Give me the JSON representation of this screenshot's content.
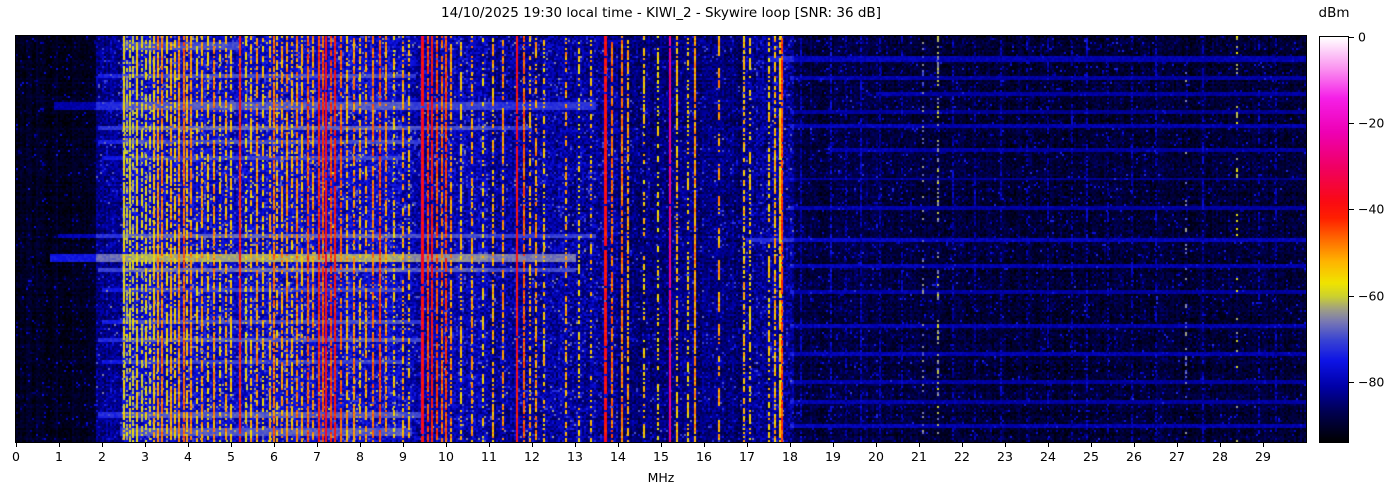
{
  "title": "14/10/2025 19:30 local time - KIWI_2 - Skywire loop [SNR: 36 dB]",
  "chart_data": {
    "type": "heatmap",
    "subtype": "radio-spectrogram-waterfall",
    "title": "14/10/2025 19:30 local time - KIWI_2 - Skywire loop [SNR: 36 dB]",
    "xlabel": "MHz",
    "x_range": [
      0,
      30
    ],
    "x_ticks": [
      0,
      1,
      2,
      3,
      4,
      5,
      6,
      7,
      8,
      9,
      10,
      11,
      12,
      13,
      14,
      15,
      16,
      17,
      18,
      19,
      20,
      21,
      22,
      23,
      24,
      25,
      26,
      27,
      28,
      29
    ],
    "y_axis": "time (vertical, unlabeled waterfall)",
    "colorbar": {
      "label": "dBm",
      "range": [
        -94,
        0
      ],
      "ticks": [
        {
          "v": 0,
          "label": "0"
        },
        {
          "v": -20,
          "label": "−20"
        },
        {
          "v": -40,
          "label": "−40"
        },
        {
          "v": -60,
          "label": "−60"
        },
        {
          "v": -80,
          "label": "−80"
        }
      ],
      "stops": [
        [
          -94,
          "#000000"
        ],
        [
          -87,
          "#000050"
        ],
        [
          -81,
          "#0000a8"
        ],
        [
          -75,
          "#0e14e6"
        ],
        [
          -70,
          "#3c46d2"
        ],
        [
          -66,
          "#7878b4"
        ],
        [
          -63,
          "#a0a082"
        ],
        [
          -60,
          "#cdd22d"
        ],
        [
          -57,
          "#f0e400"
        ],
        [
          -52,
          "#ffb400"
        ],
        [
          -47,
          "#ff6c00"
        ],
        [
          -42,
          "#ff2000"
        ],
        [
          -38,
          "#fa0a14"
        ],
        [
          -30,
          "#f00064"
        ],
        [
          -22,
          "#ee00b4"
        ],
        [
          -14,
          "#f520e8"
        ],
        [
          -7,
          "#fa96f0"
        ],
        [
          0,
          "#ffffff"
        ]
      ]
    },
    "noise_region_format": [
      "from_mhz",
      "to_mhz",
      "floor_dbm",
      "variance_db",
      "speckle_prob"
    ],
    "noise_regions": [
      [
        0.0,
        1.85,
        -91,
        2,
        0.05
      ],
      [
        1.85,
        2.45,
        -83,
        4,
        0.1
      ],
      [
        2.45,
        9.0,
        -78.5,
        5,
        0.13
      ],
      [
        9.0,
        11.0,
        -80.5,
        5,
        0.11
      ],
      [
        11.0,
        14.0,
        -82,
        5,
        0.1
      ],
      [
        14.0,
        16.9,
        -84.5,
        4,
        0.08
      ],
      [
        16.9,
        18.1,
        -82.5,
        5,
        0.1
      ],
      [
        18.1,
        21.0,
        -88.5,
        3,
        0.07
      ],
      [
        21.0,
        30.0,
        -89.5,
        3,
        0.06
      ]
    ],
    "signal_format": [
      "freq_mhz",
      "width_mhz",
      "level_dbm",
      "duty",
      "dashed"
    ],
    "signals": [
      [
        2.5,
        0.025,
        -57,
        0.85,
        0
      ],
      [
        2.57,
        0.02,
        -61,
        0.6,
        0
      ],
      [
        2.65,
        0.02,
        -58,
        0.75,
        0
      ],
      [
        2.73,
        0.02,
        -60,
        0.6,
        0
      ],
      [
        2.82,
        0.025,
        -56,
        0.85,
        0
      ],
      [
        2.92,
        0.02,
        -59,
        0.6,
        0
      ],
      [
        3.02,
        0.02,
        -57,
        0.7,
        0
      ],
      [
        3.12,
        0.02,
        -59,
        0.6,
        0
      ],
      [
        3.2,
        0.025,
        -54,
        0.85,
        0
      ],
      [
        3.3,
        0.03,
        -51,
        0.9,
        0
      ],
      [
        3.4,
        0.025,
        -49,
        0.9,
        0
      ],
      [
        3.5,
        0.02,
        -56,
        0.65,
        0
      ],
      [
        3.6,
        0.025,
        -52,
        0.8,
        0
      ],
      [
        3.7,
        0.02,
        -55,
        0.6,
        0
      ],
      [
        3.8,
        0.025,
        -50,
        0.9,
        0
      ],
      [
        3.9,
        0.03,
        -47,
        0.92,
        0
      ],
      [
        3.97,
        0.02,
        -53,
        0.7,
        0
      ],
      [
        4.06,
        0.025,
        -50,
        0.85,
        0
      ],
      [
        4.2,
        0.02,
        -55,
        0.6,
        0
      ],
      [
        4.33,
        0.025,
        -51,
        0.8,
        0
      ],
      [
        4.47,
        0.02,
        -54,
        0.65,
        0
      ],
      [
        4.6,
        0.025,
        -50,
        0.85,
        0
      ],
      [
        4.75,
        0.02,
        -55,
        0.6,
        0
      ],
      [
        4.88,
        0.02,
        -52,
        0.7,
        0
      ],
      [
        5.0,
        0.02,
        -55,
        0.6,
        0
      ],
      [
        5.2,
        0.035,
        -42,
        0.97,
        0
      ],
      [
        5.36,
        0.02,
        -56,
        0.6,
        0
      ],
      [
        5.47,
        0.02,
        -53,
        0.65,
        0
      ],
      [
        5.6,
        0.025,
        -50,
        0.8,
        0
      ],
      [
        5.75,
        0.02,
        -54,
        0.6,
        0
      ],
      [
        5.9,
        0.025,
        -52,
        0.7,
        0
      ],
      [
        6.0,
        0.03,
        -48,
        0.88,
        0
      ],
      [
        6.08,
        0.02,
        -53,
        0.65,
        0
      ],
      [
        6.19,
        0.02,
        -51,
        0.7,
        0
      ],
      [
        6.3,
        0.025,
        -50,
        0.8,
        0
      ],
      [
        6.42,
        0.02,
        -53,
        0.65,
        0
      ],
      [
        6.53,
        0.025,
        -49,
        0.8,
        0
      ],
      [
        6.65,
        0.02,
        -52,
        0.7,
        0
      ],
      [
        6.78,
        0.035,
        -46,
        0.9,
        0
      ],
      [
        6.9,
        0.025,
        -50,
        0.8,
        0
      ],
      [
        7.05,
        0.035,
        -42,
        0.95,
        0
      ],
      [
        7.14,
        0.025,
        -45,
        0.9,
        0
      ],
      [
        7.22,
        0.05,
        -38,
        0.97,
        0
      ],
      [
        7.33,
        0.035,
        -44,
        0.9,
        0
      ],
      [
        7.43,
        0.035,
        -41,
        0.95,
        0
      ],
      [
        7.56,
        0.025,
        -47,
        0.8,
        0
      ],
      [
        7.7,
        0.025,
        -52,
        0.7,
        0
      ],
      [
        7.85,
        0.025,
        -49,
        0.8,
        0
      ],
      [
        8.0,
        0.02,
        -53,
        0.6,
        0
      ],
      [
        8.13,
        0.02,
        -51,
        0.65,
        0
      ],
      [
        8.3,
        0.025,
        -48,
        0.8,
        0
      ],
      [
        8.46,
        0.035,
        -45,
        0.88,
        0
      ],
      [
        8.6,
        0.025,
        -50,
        0.7,
        0
      ],
      [
        8.8,
        0.02,
        -54,
        0.5,
        0
      ],
      [
        9.0,
        0.025,
        -51,
        0.7,
        0
      ],
      [
        9.15,
        0.02,
        -53,
        0.55,
        0
      ],
      [
        9.45,
        0.06,
        -38,
        0.97,
        0
      ],
      [
        9.58,
        0.035,
        -44,
        0.9,
        0
      ],
      [
        9.68,
        0.05,
        -40,
        0.95,
        0
      ],
      [
        9.79,
        0.035,
        -45,
        0.85,
        0
      ],
      [
        9.9,
        0.03,
        -47,
        0.8,
        0
      ],
      [
        10.0,
        0.035,
        -44,
        0.9,
        0
      ],
      [
        10.12,
        0.025,
        -50,
        0.7,
        0
      ],
      [
        10.35,
        0.02,
        -54,
        0.55,
        0
      ],
      [
        10.6,
        0.025,
        -51,
        0.65,
        0
      ],
      [
        10.85,
        0.02,
        -55,
        0.5,
        0
      ],
      [
        11.1,
        0.025,
        -52,
        0.6,
        0
      ],
      [
        11.32,
        0.025,
        -50,
        0.7,
        0
      ],
      [
        11.65,
        0.05,
        -39,
        0.95,
        0
      ],
      [
        11.81,
        0.03,
        -46,
        0.85,
        0
      ],
      [
        11.95,
        0.02,
        -52,
        0.6,
        0
      ],
      [
        12.1,
        0.025,
        -50,
        0.65,
        0
      ],
      [
        12.28,
        0.02,
        -54,
        0.5,
        0
      ],
      [
        12.8,
        0.025,
        -51,
        0.6,
        0
      ],
      [
        13.1,
        0.02,
        -55,
        0.45,
        0
      ],
      [
        13.37,
        0.02,
        -53,
        0.5,
        0
      ],
      [
        13.7,
        0.06,
        -39,
        0.95,
        0
      ],
      [
        13.86,
        0.03,
        -47,
        0.8,
        0
      ],
      [
        14.1,
        0.035,
        -48,
        0.85,
        0
      ],
      [
        14.23,
        0.025,
        -51,
        0.7,
        0
      ],
      [
        14.6,
        0.02,
        -54,
        0.5,
        0
      ],
      [
        14.92,
        0.02,
        -56,
        0.4,
        0
      ],
      [
        15.2,
        0.025,
        -27,
        0.97,
        0
      ],
      [
        15.37,
        0.02,
        -53,
        0.6,
        0
      ],
      [
        15.62,
        0.02,
        -55,
        0.5,
        0
      ],
      [
        15.8,
        0.03,
        -50,
        0.9,
        0
      ],
      [
        16.35,
        0.03,
        -51,
        0.85,
        1
      ],
      [
        16.92,
        0.02,
        -53,
        0.6,
        0
      ],
      [
        17.08,
        0.02,
        -55,
        0.5,
        0
      ],
      [
        17.52,
        0.02,
        -54,
        0.6,
        0
      ],
      [
        17.64,
        0.025,
        -52,
        0.7,
        0
      ],
      [
        17.79,
        0.06,
        -55,
        0.9,
        0
      ],
      [
        17.81,
        0.03,
        -44,
        0.9,
        0
      ],
      [
        18.25,
        0.02,
        -80,
        0.7,
        0
      ],
      [
        18.95,
        0.02,
        -78,
        0.6,
        0
      ],
      [
        19.3,
        0.02,
        -81,
        0.6,
        0
      ],
      [
        19.65,
        0.025,
        -79,
        0.7,
        0
      ],
      [
        20.1,
        0.02,
        -81,
        0.6,
        0
      ],
      [
        20.6,
        0.02,
        -80,
        0.6,
        0
      ],
      [
        21.1,
        0.02,
        -67,
        0.25,
        0
      ],
      [
        21.45,
        0.025,
        -63,
        0.35,
        0
      ],
      [
        21.8,
        0.02,
        -80,
        0.55,
        0
      ],
      [
        22.3,
        0.02,
        -81,
        0.55,
        0
      ],
      [
        22.9,
        0.02,
        -80,
        0.5,
        0
      ],
      [
        23.5,
        0.02,
        -81,
        0.5,
        0
      ],
      [
        24.0,
        0.02,
        -81,
        0.55,
        0
      ],
      [
        24.55,
        0.02,
        -80,
        0.5,
        0
      ],
      [
        24.9,
        0.02,
        -79,
        0.5,
        0
      ],
      [
        25.4,
        0.02,
        -81,
        0.5,
        0
      ],
      [
        25.95,
        0.02,
        -80,
        0.5,
        0
      ],
      [
        26.5,
        0.02,
        -80,
        0.5,
        0
      ],
      [
        27.2,
        0.02,
        -66,
        0.15,
        0
      ],
      [
        27.6,
        0.02,
        -80,
        0.5,
        0
      ],
      [
        28.4,
        0.02,
        -60,
        0.12,
        0
      ],
      [
        28.9,
        0.02,
        -80,
        0.5,
        0
      ],
      [
        29.3,
        0.02,
        -81,
        0.5,
        0
      ]
    ],
    "streak_format": [
      "time_frac",
      "time_height_frac",
      "from_mhz",
      "to_mhz",
      "boost_db"
    ],
    "time_streaks": [
      [
        0.02,
        0.02,
        2.5,
        5.2,
        9
      ],
      [
        0.055,
        0.012,
        17.5,
        30,
        9
      ],
      [
        0.095,
        0.012,
        1.9,
        9.3,
        9
      ],
      [
        0.1,
        0.01,
        18,
        30,
        8
      ],
      [
        0.14,
        0.009,
        20,
        30,
        8
      ],
      [
        0.17,
        0.015,
        0.9,
        13.5,
        10
      ],
      [
        0.185,
        0.009,
        18,
        30,
        7
      ],
      [
        0.225,
        0.012,
        1.9,
        12.0,
        11
      ],
      [
        0.22,
        0.01,
        18,
        30,
        9
      ],
      [
        0.26,
        0.01,
        1.9,
        9.5,
        9
      ],
      [
        0.28,
        0.009,
        19,
        30,
        8
      ],
      [
        0.3,
        0.01,
        2.0,
        9.0,
        8
      ],
      [
        0.35,
        0.009,
        18,
        30,
        7
      ],
      [
        0.42,
        0.009,
        18,
        30,
        8
      ],
      [
        0.49,
        0.012,
        1.0,
        13.5,
        11
      ],
      [
        0.5,
        0.01,
        17,
        30,
        10
      ],
      [
        0.545,
        0.018,
        0.8,
        13.0,
        16
      ],
      [
        0.565,
        0.009,
        18,
        30,
        9
      ],
      [
        0.575,
        0.012,
        1.9,
        13.0,
        12
      ],
      [
        0.625,
        0.01,
        2.0,
        9.0,
        8
      ],
      [
        0.63,
        0.009,
        18,
        30,
        8
      ],
      [
        0.7,
        0.01,
        2.0,
        9.5,
        9
      ],
      [
        0.71,
        0.009,
        18,
        30,
        9
      ],
      [
        0.745,
        0.012,
        1.9,
        9.5,
        10
      ],
      [
        0.78,
        0.01,
        18,
        30,
        9
      ],
      [
        0.8,
        0.01,
        2.0,
        9.0,
        8
      ],
      [
        0.85,
        0.009,
        18,
        30,
        8
      ],
      [
        0.9,
        0.009,
        18,
        30,
        8
      ],
      [
        0.93,
        0.012,
        1.9,
        9.5,
        10
      ],
      [
        0.96,
        0.009,
        18,
        30,
        9
      ],
      [
        0.975,
        0.02,
        2.4,
        9.2,
        10
      ]
    ]
  }
}
